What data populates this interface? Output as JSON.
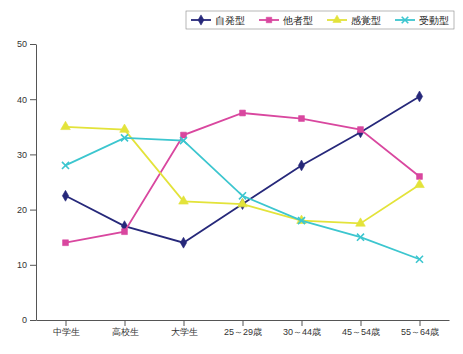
{
  "chart_data": {
    "type": "line",
    "categories": [
      "中学生",
      "高校生",
      "大学生",
      "25～29歳",
      "30～44歳",
      "45～54歳",
      "55～64歳"
    ],
    "series": [
      {
        "name": "自発型",
        "color": "#26287a",
        "marker": "diamond",
        "values": [
          22.5,
          17,
          14,
          21,
          28,
          34,
          40.5
        ]
      },
      {
        "name": "他者型",
        "color": "#d9479f",
        "marker": "square",
        "values": [
          14,
          16,
          33.5,
          37.5,
          36.5,
          34.5,
          26
        ]
      },
      {
        "name": "感覚型",
        "color": "#e3e33a",
        "marker": "triangle",
        "values": [
          35,
          34.5,
          21.5,
          21,
          18,
          17.5,
          24.5
        ]
      },
      {
        "name": "受動型",
        "color": "#3cc6cf",
        "marker": "x",
        "values": [
          28,
          33,
          32.5,
          22.5,
          18,
          15,
          11
        ]
      }
    ],
    "ylim": [
      0,
      50
    ],
    "yticks": [
      0,
      10,
      20,
      30,
      40,
      50
    ],
    "grid": false,
    "legend": "top"
  }
}
